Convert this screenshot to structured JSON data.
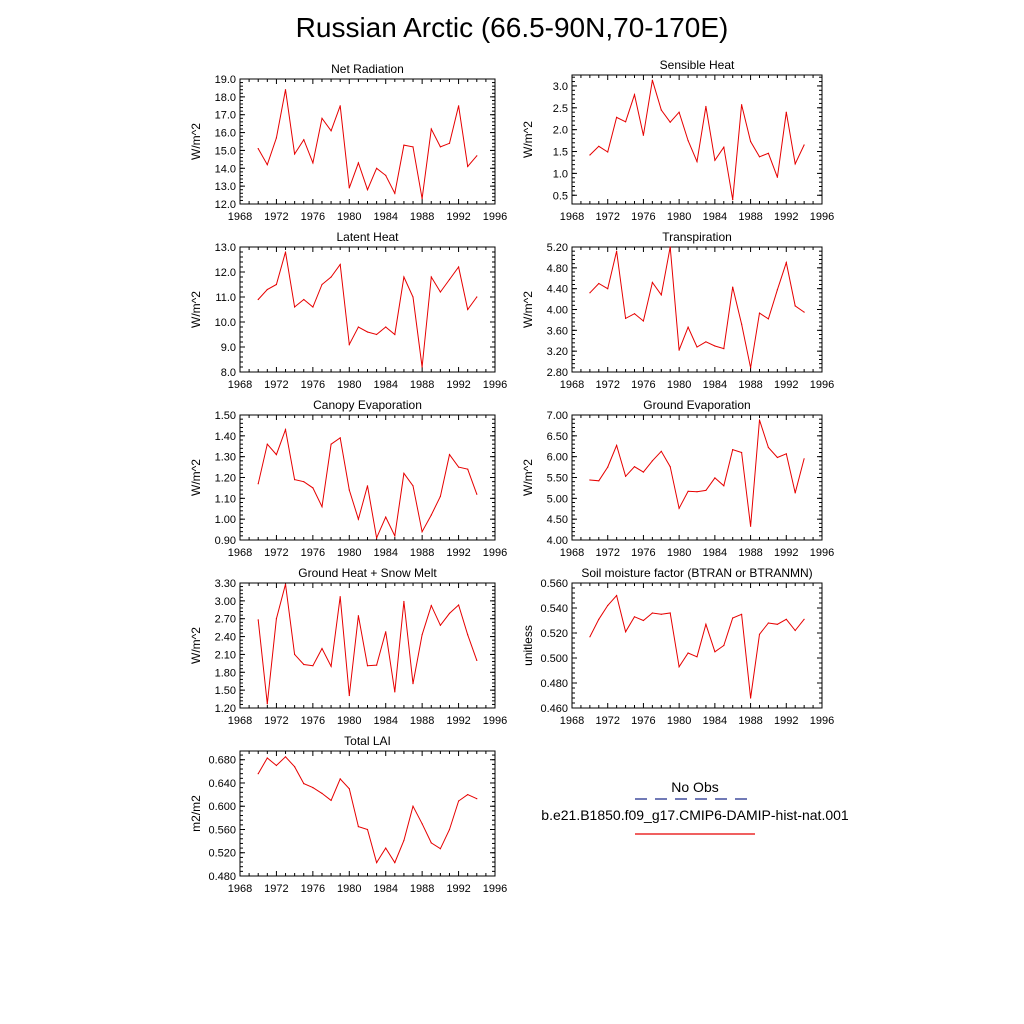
{
  "title": "Russian Arctic (66.5-90N,70-170E)",
  "colors": {
    "model_line": "#e60000",
    "obs_line": "#1c2a8a"
  },
  "legend": {
    "obs_label": "No Obs",
    "model_label": "b.e21.B1850.f09_g17.CMIP6-DAMIP-hist-nat.001"
  },
  "chart_data": [
    {
      "type": "line",
      "title": "Net Radiation",
      "ylabel": "W/m^2",
      "xlim": [
        1968,
        1996
      ],
      "ylim": [
        12.0,
        19.0
      ],
      "xticks": [
        "1968",
        "1972",
        "1976",
        "1980",
        "1984",
        "1988",
        "1992",
        "1996"
      ],
      "yticks": [
        "12.0",
        "13.0",
        "14.0",
        "15.0",
        "16.0",
        "17.0",
        "18.0",
        "19.0"
      ],
      "x": [
        1970,
        1971,
        1972,
        1973,
        1974,
        1975,
        1976,
        1977,
        1978,
        1979,
        1980,
        1981,
        1982,
        1983,
        1984,
        1985,
        1986,
        1987,
        1988,
        1989,
        1990,
        1991,
        1992,
        1993,
        1994
      ],
      "series": [
        {
          "values": [
            15.1,
            14.2,
            15.7,
            18.4,
            14.8,
            15.6,
            14.3,
            16.8,
            16.1,
            17.5,
            12.9,
            14.3,
            12.8,
            14.0,
            13.6,
            12.6,
            15.3,
            15.2,
            12.3,
            16.2,
            15.2,
            15.4,
            17.5,
            14.1,
            14.7
          ]
        }
      ]
    },
    {
      "type": "line",
      "title": "Sensible Heat",
      "ylabel": "W/m^2",
      "xlim": [
        1968,
        1996
      ],
      "ylim": [
        0.3,
        3.25
      ],
      "xticks": [
        "1968",
        "1972",
        "1976",
        "1980",
        "1984",
        "1988",
        "1992",
        "1996"
      ],
      "yticks": [
        "0.5",
        "1.0",
        "1.5",
        "2.0",
        "2.5",
        "3.0"
      ],
      "x": [
        1970,
        1971,
        1972,
        1973,
        1974,
        1975,
        1976,
        1977,
        1978,
        1979,
        1980,
        1981,
        1982,
        1983,
        1984,
        1985,
        1986,
        1987,
        1988,
        1989,
        1990,
        1991,
        1992,
        1993,
        1994
      ],
      "series": [
        {
          "values": [
            1.42,
            1.62,
            1.49,
            2.28,
            2.18,
            2.8,
            1.87,
            3.13,
            2.45,
            2.17,
            2.4,
            1.75,
            1.27,
            2.53,
            1.3,
            1.6,
            0.4,
            2.57,
            1.73,
            1.38,
            1.46,
            0.91,
            2.4,
            1.22,
            1.65
          ]
        }
      ]
    },
    {
      "type": "line",
      "title": "Latent Heat",
      "ylabel": "W/m^2",
      "xlim": [
        1968,
        1996
      ],
      "ylim": [
        8.0,
        13.0
      ],
      "xticks": [
        "1968",
        "1972",
        "1976",
        "1980",
        "1984",
        "1988",
        "1992",
        "1996"
      ],
      "yticks": [
        "8.0",
        "9.0",
        "10.0",
        "11.0",
        "12.0",
        "13.0"
      ],
      "x": [
        1970,
        1971,
        1972,
        1973,
        1974,
        1975,
        1976,
        1977,
        1978,
        1979,
        1980,
        1981,
        1982,
        1983,
        1984,
        1985,
        1986,
        1987,
        1988,
        1989,
        1990,
        1991,
        1992,
        1993,
        1994
      ],
      "series": [
        {
          "values": [
            10.9,
            11.3,
            11.5,
            12.8,
            10.6,
            10.9,
            10.6,
            11.5,
            11.8,
            12.3,
            9.1,
            9.8,
            9.6,
            9.5,
            9.8,
            9.5,
            11.8,
            11.0,
            8.2,
            11.8,
            11.2,
            11.7,
            12.2,
            10.5,
            11.0
          ]
        }
      ]
    },
    {
      "type": "line",
      "title": "Transpiration",
      "ylabel": "W/m^2",
      "xlim": [
        1968,
        1996
      ],
      "ylim": [
        2.8,
        5.2
      ],
      "xticks": [
        "1968",
        "1972",
        "1976",
        "1980",
        "1984",
        "1988",
        "1992",
        "1996"
      ],
      "yticks": [
        "2.80",
        "3.20",
        "3.60",
        "4.00",
        "4.40",
        "4.80",
        "5.20"
      ],
      "x": [
        1970,
        1971,
        1972,
        1973,
        1974,
        1975,
        1976,
        1977,
        1978,
        1979,
        1980,
        1981,
        1982,
        1983,
        1984,
        1985,
        1986,
        1987,
        1988,
        1989,
        1990,
        1991,
        1992,
        1993,
        1994
      ],
      "series": [
        {
          "values": [
            4.32,
            4.5,
            4.4,
            5.12,
            3.83,
            3.92,
            3.78,
            4.52,
            4.28,
            5.2,
            3.22,
            3.66,
            3.28,
            3.38,
            3.3,
            3.25,
            4.43,
            3.72,
            2.88,
            3.93,
            3.82,
            4.38,
            4.9,
            4.07,
            3.95
          ]
        }
      ]
    },
    {
      "type": "line",
      "title": "Canopy Evaporation",
      "ylabel": "W/m^2",
      "xlim": [
        1968,
        1996
      ],
      "ylim": [
        0.9,
        1.5
      ],
      "xticks": [
        "1968",
        "1972",
        "1976",
        "1980",
        "1984",
        "1988",
        "1992",
        "1996"
      ],
      "yticks": [
        "0.90",
        "1.00",
        "1.10",
        "1.20",
        "1.30",
        "1.40",
        "1.50"
      ],
      "x": [
        1970,
        1971,
        1972,
        1973,
        1974,
        1975,
        1976,
        1977,
        1978,
        1979,
        1980,
        1981,
        1982,
        1983,
        1984,
        1985,
        1986,
        1987,
        1988,
        1989,
        1990,
        1991,
        1992,
        1993,
        1994
      ],
      "series": [
        {
          "values": [
            1.17,
            1.36,
            1.31,
            1.43,
            1.19,
            1.18,
            1.15,
            1.06,
            1.36,
            1.39,
            1.14,
            1.0,
            1.16,
            0.91,
            1.01,
            0.92,
            1.22,
            1.16,
            0.94,
            1.02,
            1.11,
            1.31,
            1.25,
            1.24,
            1.12
          ]
        }
      ]
    },
    {
      "type": "line",
      "title": "Ground Evaporation",
      "ylabel": "W/m^2",
      "xlim": [
        1968,
        1996
      ],
      "ylim": [
        4.0,
        7.0
      ],
      "xticks": [
        "1968",
        "1972",
        "1976",
        "1980",
        "1984",
        "1988",
        "1992",
        "1996"
      ],
      "yticks": [
        "4.00",
        "4.50",
        "5.00",
        "5.50",
        "6.00",
        "6.50",
        "7.00"
      ],
      "x": [
        1970,
        1971,
        1972,
        1973,
        1974,
        1975,
        1976,
        1977,
        1978,
        1979,
        1980,
        1981,
        1982,
        1983,
        1984,
        1985,
        1986,
        1987,
        1988,
        1989,
        1990,
        1991,
        1992,
        1993,
        1994
      ],
      "series": [
        {
          "values": [
            5.44,
            5.42,
            5.75,
            6.27,
            5.53,
            5.76,
            5.63,
            5.9,
            6.13,
            5.76,
            4.76,
            5.17,
            5.16,
            5.19,
            5.49,
            5.3,
            6.17,
            6.1,
            4.33,
            6.88,
            6.22,
            5.98,
            6.07,
            5.13,
            5.95
          ]
        }
      ]
    },
    {
      "type": "line",
      "title": "Ground Heat + Snow Melt",
      "ylabel": "W/m^2",
      "xlim": [
        1968,
        1996
      ],
      "ylim": [
        1.2,
        3.3
      ],
      "xticks": [
        "1968",
        "1972",
        "1976",
        "1980",
        "1984",
        "1988",
        "1992",
        "1996"
      ],
      "yticks": [
        "1.20",
        "1.50",
        "1.80",
        "2.10",
        "2.40",
        "2.70",
        "3.00",
        "3.30"
      ],
      "x": [
        1970,
        1971,
        1972,
        1973,
        1974,
        1975,
        1976,
        1977,
        1978,
        1979,
        1980,
        1981,
        1982,
        1983,
        1984,
        1985,
        1986,
        1987,
        1988,
        1989,
        1990,
        1991,
        1992,
        1993,
        1994
      ],
      "series": [
        {
          "values": [
            2.68,
            1.27,
            2.7,
            3.28,
            2.1,
            1.93,
            1.91,
            2.2,
            1.9,
            3.07,
            1.41,
            2.75,
            1.91,
            1.92,
            2.48,
            1.47,
            2.99,
            1.61,
            2.43,
            2.92,
            2.59,
            2.79,
            2.93,
            2.43,
            2.0
          ]
        }
      ]
    },
    {
      "type": "line",
      "title": "Soil moisture factor (BTRAN or BTRANMN)",
      "ylabel": "unitless",
      "xlim": [
        1968,
        1996
      ],
      "ylim": [
        0.46,
        0.56
      ],
      "xticks": [
        "1968",
        "1972",
        "1976",
        "1980",
        "1984",
        "1988",
        "1992",
        "1996"
      ],
      "yticks": [
        "0.460",
        "0.480",
        "0.500",
        "0.520",
        "0.540",
        "0.560"
      ],
      "x": [
        1970,
        1971,
        1972,
        1973,
        1974,
        1975,
        1976,
        1977,
        1978,
        1979,
        1980,
        1981,
        1982,
        1983,
        1984,
        1985,
        1986,
        1987,
        1988,
        1989,
        1990,
        1991,
        1992,
        1993,
        1994
      ],
      "series": [
        {
          "values": [
            0.517,
            0.531,
            0.542,
            0.55,
            0.521,
            0.533,
            0.53,
            0.536,
            0.535,
            0.536,
            0.493,
            0.504,
            0.501,
            0.527,
            0.505,
            0.51,
            0.532,
            0.535,
            0.468,
            0.519,
            0.528,
            0.527,
            0.531,
            0.522,
            0.531
          ]
        }
      ]
    },
    {
      "type": "line",
      "title": "Total LAI",
      "ylabel": "m2/m2",
      "xlim": [
        1968,
        1996
      ],
      "ylim": [
        0.48,
        0.695
      ],
      "xticks": [
        "1968",
        "1972",
        "1976",
        "1980",
        "1984",
        "1988",
        "1992",
        "1996"
      ],
      "yticks": [
        "0.480",
        "0.520",
        "0.560",
        "0.600",
        "0.640",
        "0.680"
      ],
      "x": [
        1970,
        1971,
        1972,
        1973,
        1974,
        1975,
        1976,
        1977,
        1978,
        1979,
        1980,
        1981,
        1982,
        1983,
        1984,
        1985,
        1986,
        1987,
        1988,
        1989,
        1990,
        1991,
        1992,
        1993,
        1994
      ],
      "series": [
        {
          "values": [
            0.656,
            0.683,
            0.67,
            0.685,
            0.668,
            0.639,
            0.632,
            0.622,
            0.61,
            0.647,
            0.63,
            0.565,
            0.56,
            0.503,
            0.528,
            0.503,
            0.541,
            0.6,
            0.57,
            0.537,
            0.527,
            0.56,
            0.609,
            0.62,
            0.613
          ]
        }
      ]
    }
  ]
}
